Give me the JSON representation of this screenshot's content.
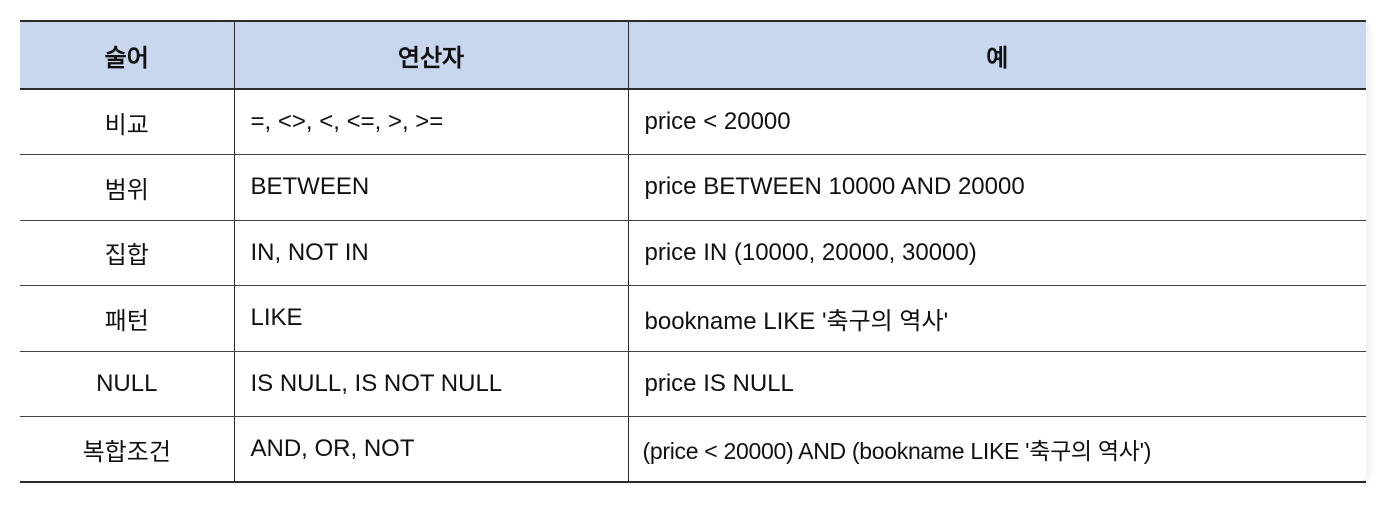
{
  "table": {
    "headers": {
      "predicate": "술어",
      "operator": "연산자",
      "example": "예"
    },
    "rows": [
      {
        "predicate": "비교",
        "operator": "=, <>, <, <=, >, >=",
        "example": "price < 20000"
      },
      {
        "predicate": "범위",
        "operator": "BETWEEN",
        "example": "price BETWEEN 10000 AND 20000"
      },
      {
        "predicate": "집합",
        "operator": "IN, NOT IN",
        "example": "price IN (10000, 20000, 30000)"
      },
      {
        "predicate": "패턴",
        "operator": "LIKE",
        "example": "bookname LIKE '축구의 역사'"
      },
      {
        "predicate": "NULL",
        "operator": "IS NULL, IS NOT NULL",
        "example": "price IS NULL"
      },
      {
        "predicate": "복합조건",
        "operator": "AND, OR, NOT",
        "example": "(price < 20000) AND (bookname LIKE '축구의 역사')"
      }
    ]
  },
  "colors": {
    "header_background": "#c9d7ee",
    "border": "#2b2b2b"
  }
}
